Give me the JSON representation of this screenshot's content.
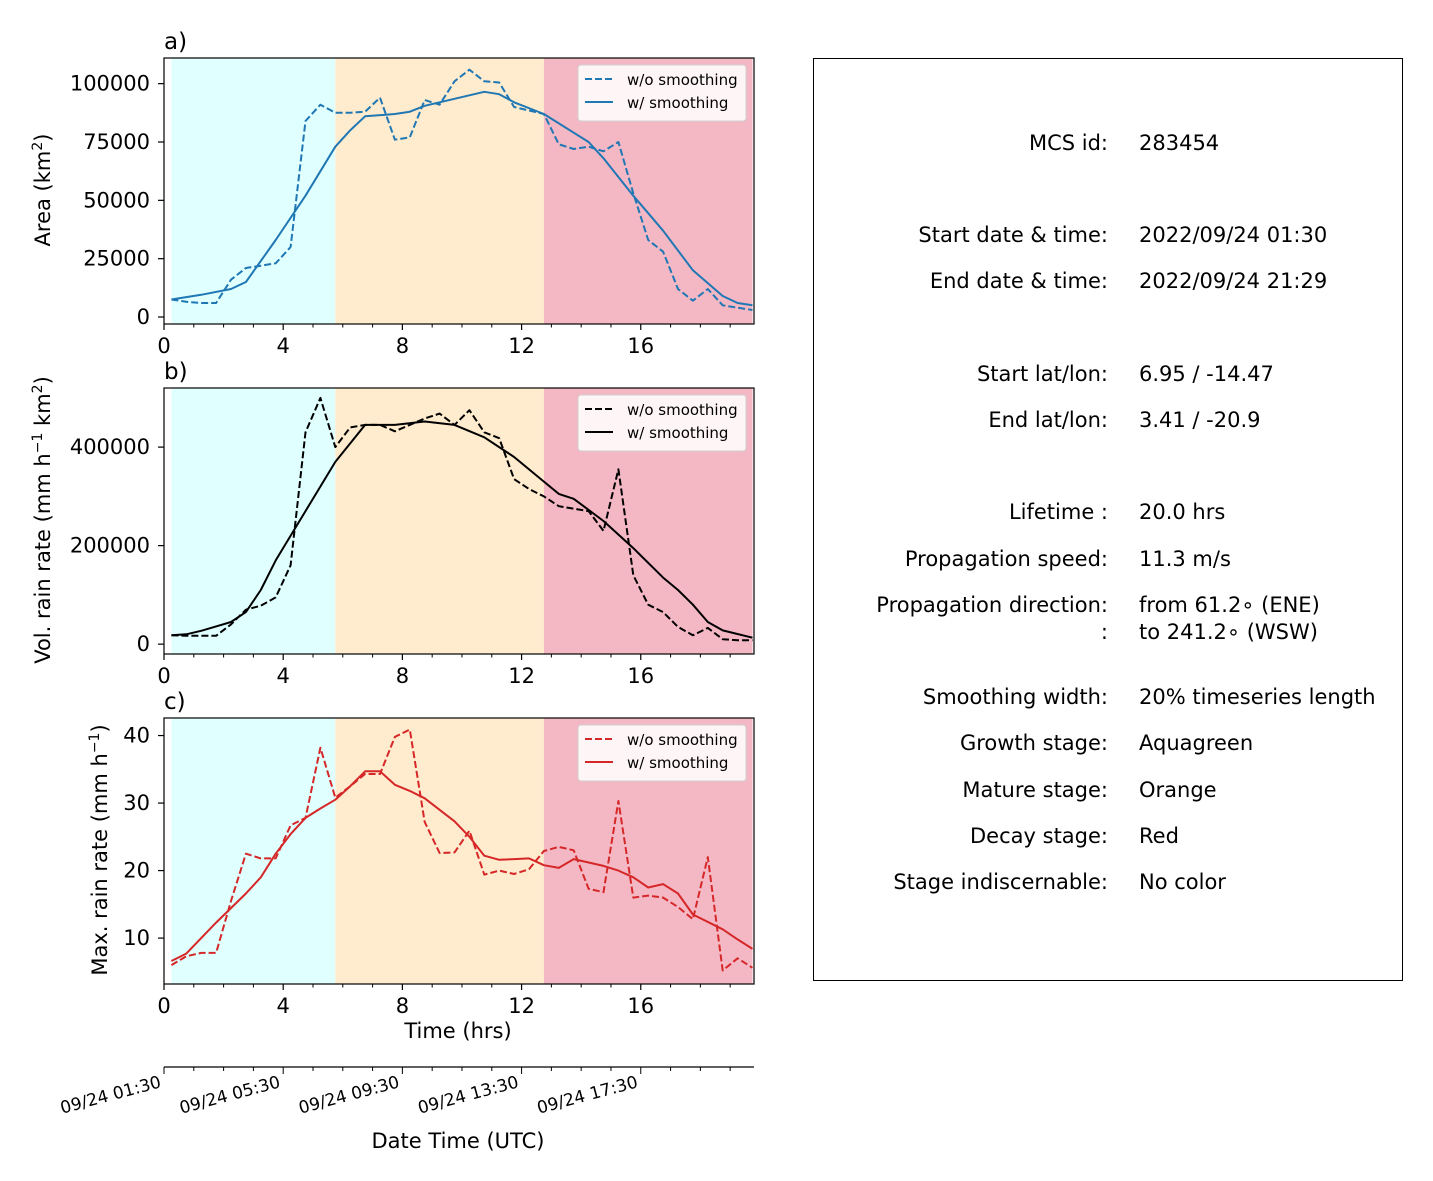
{
  "chart_data": [
    {
      "panel": "a)",
      "type": "line",
      "ylabel": "Area  (km²)",
      "xlim": [
        0,
        19.8
      ],
      "ylim": [
        -3000,
        111000
      ],
      "xticks": [
        0,
        4,
        8,
        12,
        16
      ],
      "yticks": [
        0,
        25000,
        50000,
        75000,
        100000
      ],
      "color": "#1f77b4",
      "legend": "top-right",
      "stages": [
        {
          "name": "Growth stage",
          "start": 0.25,
          "end": 5.75,
          "color": "#e0ffff"
        },
        {
          "name": "Mature stage",
          "start": 5.75,
          "end": 12.75,
          "color": "#ffebcd"
        },
        {
          "name": "Decay stage",
          "start": 12.75,
          "end": 19.75,
          "color": "#f4b8c5"
        }
      ],
      "series": [
        {
          "name": "w/o smoothing",
          "style": "dashed",
          "x": [
            0.25,
            0.75,
            1.25,
            1.75,
            2.25,
            2.75,
            3.25,
            3.75,
            4.25,
            4.75,
            5.25,
            5.75,
            6.25,
            6.75,
            7.25,
            7.75,
            8.25,
            8.75,
            9.25,
            9.75,
            10.25,
            10.75,
            11.25,
            11.75,
            12.25,
            12.75,
            13.25,
            13.75,
            14.25,
            14.75,
            15.25,
            15.75,
            16.25,
            16.75,
            17.25,
            17.75,
            18.25,
            18.75,
            19.25,
            19.75
          ],
          "y": [
            7500,
            6500,
            6000,
            6000,
            16000,
            21000,
            22000,
            23000,
            30000,
            84000,
            91000,
            87500,
            87500,
            88000,
            94000,
            76000,
            77000,
            93000,
            91000,
            101000,
            106000,
            101000,
            100500,
            90000,
            88500,
            87000,
            74000,
            72000,
            73000,
            71000,
            75000,
            53000,
            33000,
            28000,
            12000,
            7000,
            12000,
            5000,
            4000,
            3000
          ]
        },
        {
          "name": "w/ smoothing",
          "style": "solid",
          "x": [
            0.25,
            1.25,
            2.25,
            2.75,
            3.75,
            4.75,
            5.75,
            6.25,
            6.75,
            7.75,
            8.25,
            8.75,
            9.75,
            10.75,
            11.25,
            11.75,
            12.75,
            13.75,
            14.25,
            14.75,
            15.75,
            16.75,
            17.75,
            18.75,
            19.25,
            19.75
          ],
          "y": [
            7500,
            9500,
            12000,
            15000,
            33000,
            52000,
            73000,
            80000,
            86000,
            87000,
            88000,
            90500,
            93500,
            96500,
            95500,
            92000,
            87000,
            79000,
            75000,
            68000,
            52000,
            37000,
            20000,
            9000,
            6000,
            5000
          ]
        }
      ]
    },
    {
      "panel": "b)",
      "type": "line",
      "ylabel": "Vol. rain rate (mm h⁻¹ km²)",
      "xlim": [
        0,
        19.8
      ],
      "ylim": [
        -20000,
        520000
      ],
      "xticks": [
        0,
        4,
        8,
        12,
        16
      ],
      "yticks": [
        0,
        200000,
        400000
      ],
      "color": "#000000",
      "legend": "top-right",
      "series": [
        {
          "name": "w/o smoothing",
          "style": "dashed",
          "x": [
            0.25,
            0.75,
            1.25,
            1.75,
            2.25,
            2.75,
            3.25,
            3.75,
            4.25,
            4.75,
            5.25,
            5.75,
            6.25,
            6.75,
            7.25,
            7.75,
            8.25,
            8.75,
            9.25,
            9.75,
            10.25,
            10.75,
            11.25,
            11.75,
            12.25,
            12.75,
            13.25,
            13.75,
            14.25,
            14.75,
            15.25,
            15.75,
            16.25,
            16.75,
            17.25,
            17.75,
            18.25,
            18.75,
            19.25,
            19.75
          ],
          "y": [
            18000,
            17000,
            17000,
            17000,
            40000,
            70000,
            78000,
            95000,
            160000,
            430000,
            500000,
            400000,
            440000,
            445000,
            445000,
            432000,
            445000,
            458000,
            468000,
            445000,
            475000,
            430000,
            418000,
            335000,
            315000,
            300000,
            280000,
            275000,
            270000,
            230000,
            355000,
            140000,
            80000,
            65000,
            35000,
            18000,
            33000,
            10000,
            8000,
            8000
          ]
        },
        {
          "name": "w/ smoothing",
          "style": "solid",
          "x": [
            0.25,
            0.75,
            1.25,
            1.75,
            2.25,
            2.75,
            3.25,
            3.75,
            4.75,
            5.75,
            6.75,
            7.25,
            7.75,
            8.75,
            9.75,
            10.75,
            11.75,
            12.75,
            13.25,
            13.75,
            14.75,
            15.75,
            16.75,
            17.25,
            17.75,
            18.25,
            18.75,
            19.75
          ],
          "y": [
            18000,
            20000,
            27000,
            36000,
            45000,
            65000,
            110000,
            170000,
            270000,
            370000,
            445000,
            445000,
            445000,
            452000,
            445000,
            420000,
            380000,
            330000,
            305000,
            295000,
            250000,
            195000,
            135000,
            110000,
            80000,
            45000,
            28000,
            13000
          ]
        }
      ]
    },
    {
      "panel": "c)",
      "type": "line",
      "ylabel": "Max. rain rate  (mm h⁻¹)",
      "xlim": [
        0,
        19.8
      ],
      "ylim": [
        3.2,
        42.6
      ],
      "xticks": [
        0,
        4,
        8,
        12,
        16
      ],
      "yticks": [
        10,
        20,
        30,
        40
      ],
      "xlabel": "Time (hrs)",
      "color": "#d62728",
      "legend": "top-right",
      "series": [
        {
          "name": "w/o smoothing",
          "style": "dashed",
          "x": [
            0.25,
            0.75,
            1.25,
            1.75,
            2.25,
            2.75,
            3.25,
            3.75,
            4.25,
            4.75,
            5.25,
            5.75,
            6.25,
            6.75,
            7.25,
            7.75,
            8.25,
            8.75,
            9.25,
            9.75,
            10.25,
            10.75,
            11.25,
            11.75,
            12.25,
            12.75,
            13.25,
            13.75,
            14.25,
            14.75,
            15.25,
            15.75,
            16.25,
            16.75,
            17.25,
            17.75,
            18.25,
            18.75,
            19.25,
            19.75
          ],
          "y": [
            6,
            7.3,
            7.8,
            7.8,
            15.5,
            22.5,
            21.8,
            21.8,
            26.7,
            27.8,
            38.2,
            30.8,
            32.5,
            34.3,
            34.3,
            39.8,
            40.9,
            27.2,
            22.6,
            22.7,
            25.9,
            19.4,
            20.0,
            19.5,
            20.2,
            22.9,
            23.5,
            23.0,
            17.3,
            16.8,
            30.3,
            16.0,
            16.3,
            16.0,
            14.6,
            12.8,
            22.0,
            5.2,
            7.0,
            5.6
          ]
        },
        {
          "name": "w/ smoothing",
          "style": "solid",
          "x": [
            0.25,
            0.75,
            1.75,
            2.75,
            3.25,
            3.75,
            4.25,
            4.75,
            5.25,
            5.75,
            6.25,
            6.75,
            7.25,
            7.75,
            8.25,
            8.75,
            9.25,
            9.75,
            10.25,
            10.75,
            11.25,
            11.75,
            12.25,
            12.75,
            13.25,
            13.75,
            14.75,
            15.25,
            15.75,
            16.25,
            16.75,
            17.25,
            17.75,
            18.75,
            19.25,
            19.75
          ],
          "y": [
            6.6,
            7.7,
            12.3,
            16.6,
            19.0,
            22.5,
            25.4,
            27.8,
            29.2,
            30.5,
            32.5,
            34.7,
            34.7,
            32.7,
            31.8,
            30.7,
            29.0,
            27.3,
            25.0,
            22.2,
            21.6,
            21.7,
            21.8,
            20.8,
            20.4,
            21.7,
            20.7,
            20.0,
            19.0,
            17.5,
            18.0,
            16.6,
            13.5,
            11.3,
            9.8,
            8.4
          ]
        }
      ]
    }
  ],
  "panel_labels": [
    "a)",
    "b)",
    "c)"
  ],
  "tick_labels": {
    "a_y": [
      "0",
      "25000",
      "50000",
      "75000",
      "100000"
    ],
    "b_y": [
      "0",
      "200000",
      "400000"
    ],
    "c_y": [
      "10",
      "20",
      "30",
      "40"
    ],
    "x": [
      "0",
      "4",
      "8",
      "12",
      "16"
    ]
  },
  "legend_labels": [
    "w/o smoothing",
    "w/ smoothing"
  ],
  "axis_titles": {
    "a_y_main": "Area  (km",
    "a_y_sup": "2",
    "a_y_close": ")",
    "b_y_main": "Vol. rain rate (mm h",
    "b_y_sup1": "−1",
    "b_y_mid": " km",
    "b_y_sup2": "2",
    "b_y_close": ")",
    "c_y_main": "Max. rain rate  (mm h",
    "c_y_sup": "−1",
    "c_y_close": ")",
    "x_time": "Time (hrs)",
    "x_date": "Date Time (UTC)"
  },
  "date_axis": {
    "labels": [
      "09/24 01:30",
      "09/24 05:30",
      "09/24 09:30",
      "09/24 13:30",
      "09/24 17:30"
    ]
  },
  "info": [
    {
      "label": "MCS id:",
      "value": "283454"
    },
    {
      "label": "Start date & time:",
      "value": "2022/09/24 01:30"
    },
    {
      "label": "End date & time:",
      "value": "2022/09/24 21:29"
    },
    {
      "label": "Start lat/lon:",
      "value": "6.95 / -14.47"
    },
    {
      "label": "End lat/lon:",
      "value": "3.41 / -20.9"
    },
    {
      "label": "Lifetime :",
      "value": "20.0 hrs"
    },
    {
      "label": "Propagation speed:",
      "value": "11.3 m/s"
    },
    {
      "label": "Propagation direction:",
      "value": "from  61.2∘ (ENE)"
    },
    {
      "label": ":",
      "value": "to   241.2∘ (WSW)"
    },
    {
      "label": "Smoothing width:",
      "value": "20% timeseries length"
    },
    {
      "label": "Growth stage:",
      "value": "Aquagreen"
    },
    {
      "label": "Mature stage:",
      "value": "Orange"
    },
    {
      "label": "Decay stage:",
      "value": "Red"
    },
    {
      "label": "Stage indiscernable:",
      "value": "No color"
    }
  ]
}
